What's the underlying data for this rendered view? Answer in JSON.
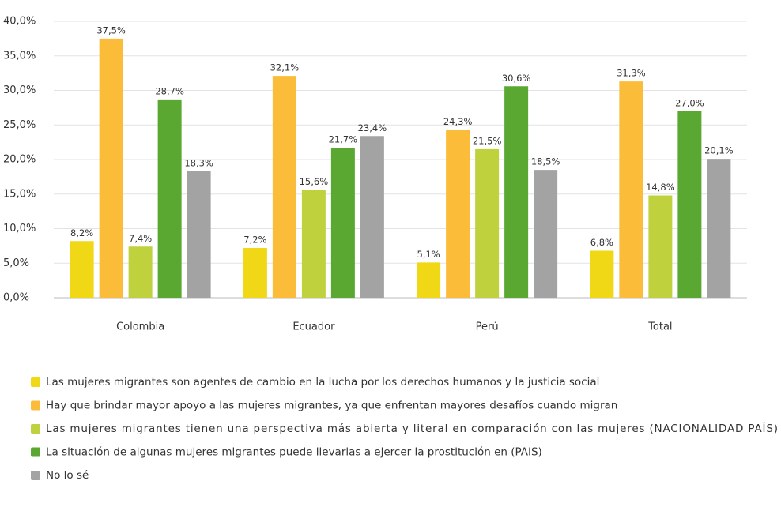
{
  "chart_data": {
    "type": "bar",
    "categories": [
      "Colombia",
      "Ecuador",
      "Perú",
      "Total"
    ],
    "series": [
      {
        "name": "Las mujeres migrantes son agentes de cambio en la lucha por los derechos humanos y la justicia social",
        "color": "#f0d816",
        "values": [
          8.2,
          7.2,
          5.1,
          6.8
        ],
        "value_labels": [
          "8,2%",
          "7,2%",
          "5,1%",
          "6,8%"
        ]
      },
      {
        "name": "Hay que brindar mayor apoyo a las mujeres migrantes, ya que enfrentan mayores desafíos cuando migran",
        "color": "#fbbc3a",
        "values": [
          37.5,
          32.1,
          24.3,
          31.3
        ],
        "value_labels": [
          "37,5%",
          "32,1%",
          "24,3%",
          "31,3%"
        ]
      },
      {
        "name": "Las mujeres migrantes tienen una perspectiva más abierta y literal en comparación con las mujeres (NACIONALIDAD PAÍS)",
        "color": "#bfd23e",
        "values": [
          7.4,
          15.6,
          21.5,
          14.8
        ],
        "value_labels": [
          "7,4%",
          "15,6%",
          "21,5%",
          "14,8%"
        ]
      },
      {
        "name": "La situación de algunas mujeres migrantes puede llevarlas a ejercer la prostitución en (PAIS)",
        "color": "#5aa832",
        "values": [
          28.7,
          21.7,
          30.6,
          27.0
        ],
        "value_labels": [
          "28,7%",
          "21,7%",
          "30,6%",
          "27,0%"
        ]
      },
      {
        "name": "No lo sé",
        "color": "#a3a3a3",
        "values": [
          18.3,
          23.4,
          18.5,
          20.1
        ],
        "value_labels": [
          "18,3%",
          "23,4%",
          "18,5%",
          "20,1%"
        ]
      }
    ],
    "ylim": [
      0,
      40
    ],
    "yticks": [
      {
        "value": 0,
        "label": "0,0%"
      },
      {
        "value": 5,
        "label": "5,0%"
      },
      {
        "value": 10,
        "label": "10,0%"
      },
      {
        "value": 15,
        "label": "15,0%"
      },
      {
        "value": 20,
        "label": "20,0%"
      },
      {
        "value": 25,
        "label": "25,0%"
      },
      {
        "value": 30,
        "label": "30,0%"
      },
      {
        "value": 35,
        "label": "35,0%"
      },
      {
        "value": 40,
        "label": "40,0%"
      }
    ],
    "grid": true,
    "legend": "bottom"
  }
}
